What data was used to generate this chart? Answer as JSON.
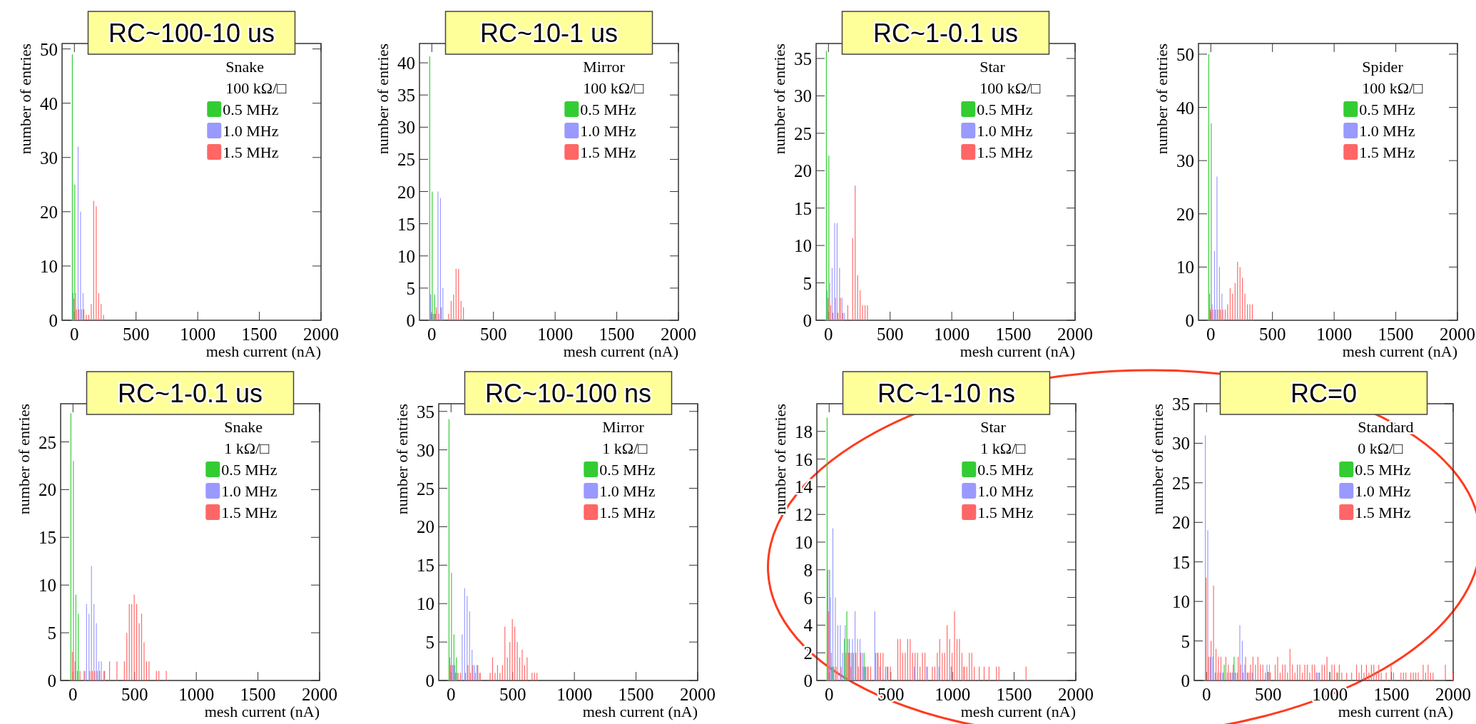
{
  "chart_data": [
    {
      "type": "histogram",
      "title": "RC~100-10 us",
      "xlabel": "mesh current (nA)",
      "ylabel": "number of entries",
      "legend_title": "Snake\n100 kΩ/□",
      "legend": "top right",
      "xlim": [
        -100,
        2000
      ],
      "xticks": [
        0,
        500,
        1000,
        1500,
        2000
      ],
      "ylim": [
        0,
        51
      ],
      "yticks": [
        0,
        10,
        20,
        30,
        40,
        50
      ],
      "bins": [
        -20,
        0,
        20,
        40,
        60,
        80,
        100,
        120,
        140,
        160,
        180,
        200,
        220,
        240,
        260,
        280,
        300,
        320,
        340
      ],
      "series": [
        {
          "name": "0.5 MHz",
          "color": "#33cc33",
          "values": [
            49,
            25,
            0,
            0,
            0,
            0,
            0,
            0,
            0,
            0,
            0,
            0,
            0,
            0,
            0,
            0,
            0,
            0
          ]
        },
        {
          "name": "1.0 MHz",
          "color": "#9999ff",
          "values": [
            5,
            5,
            32,
            20,
            5,
            0,
            0,
            0,
            0,
            0,
            0,
            0,
            0,
            0,
            0,
            0,
            0,
            0
          ]
        },
        {
          "name": "1.5 MHz",
          "color": "#ff6666",
          "values": [
            4,
            2,
            2,
            2,
            2,
            1,
            1,
            3,
            22,
            21,
            5,
            3,
            1,
            0,
            0,
            0,
            0,
            0
          ]
        }
      ]
    },
    {
      "type": "histogram",
      "title": "RC~10-1 us",
      "xlabel": "mesh current (nA)",
      "ylabel": "number of entries",
      "legend_title": "Mirror\n100 kΩ/□",
      "legend": "top right",
      "xlim": [
        -100,
        2000
      ],
      "xticks": [
        0,
        500,
        1000,
        1500,
        2000
      ],
      "ylim": [
        0,
        43
      ],
      "yticks": [
        0,
        5,
        10,
        15,
        20,
        25,
        30,
        35,
        40
      ],
      "bins": [
        -20,
        0,
        20,
        40,
        60,
        80,
        100,
        120,
        140,
        160,
        180,
        200,
        220,
        240,
        260,
        280,
        300,
        320,
        340
      ],
      "series": [
        {
          "name": "0.5 MHz",
          "color": "#33cc33",
          "values": [
            41,
            20,
            4,
            0,
            0,
            0,
            0,
            0,
            0,
            0,
            0,
            0,
            0,
            0,
            0,
            0,
            0,
            0
          ]
        },
        {
          "name": "1.0 MHz",
          "color": "#9999ff",
          "values": [
            4,
            1,
            1,
            20,
            19,
            5,
            0,
            0,
            0,
            0,
            0,
            0,
            0,
            0,
            0,
            0,
            0,
            0
          ]
        },
        {
          "name": "1.5 MHz",
          "color": "#ff6666",
          "values": [
            1,
            1,
            2,
            1,
            2,
            0,
            0,
            1,
            3,
            4,
            8,
            8,
            3,
            2,
            0,
            0,
            0,
            0
          ]
        }
      ]
    },
    {
      "type": "histogram",
      "title": "RC~1-0.1 us",
      "xlabel": "mesh current (nA)",
      "ylabel": "number of entries",
      "legend_title": "Star\n100 kΩ/□",
      "legend": "top right",
      "xlim": [
        -100,
        2000
      ],
      "xticks": [
        0,
        500,
        1000,
        1500,
        2000
      ],
      "ylim": [
        0,
        37
      ],
      "yticks": [
        0,
        5,
        10,
        15,
        20,
        25,
        30,
        35
      ],
      "bins": [
        -20,
        0,
        20,
        40,
        60,
        80,
        100,
        120,
        140,
        160,
        180,
        200,
        220,
        240,
        260,
        280,
        300,
        320,
        340
      ],
      "series": [
        {
          "name": "0.5 MHz",
          "color": "#33cc33",
          "values": [
            36,
            22,
            0,
            0,
            0,
            0,
            0,
            0,
            0,
            0,
            0,
            0,
            0,
            0,
            0,
            0,
            0,
            0
          ]
        },
        {
          "name": "1.0 MHz",
          "color": "#9999ff",
          "values": [
            4,
            5,
            7,
            13,
            13,
            7,
            3,
            1,
            0,
            0,
            0,
            0,
            0,
            0,
            0,
            0,
            0,
            0
          ]
        },
        {
          "name": "1.5 MHz",
          "color": "#ff6666",
          "values": [
            3,
            2,
            1,
            3,
            1,
            3,
            1,
            0,
            2,
            0,
            11,
            18,
            6,
            4,
            2,
            2,
            2,
            0
          ]
        }
      ]
    },
    {
      "type": "histogram",
      "xlabel": "mesh current (nA)",
      "ylabel": "number of entries",
      "legend_title": "Spider\n100 kΩ/□",
      "legend": "top right",
      "xlim": [
        -100,
        2000
      ],
      "xticks": [
        0,
        500,
        1000,
        1500,
        2000
      ],
      "ylim": [
        0,
        52
      ],
      "yticks": [
        0,
        10,
        20,
        30,
        40,
        50
      ],
      "bins": [
        -20,
        0,
        20,
        40,
        60,
        80,
        100,
        120,
        140,
        160,
        180,
        200,
        220,
        240,
        260,
        280,
        300,
        320,
        340
      ],
      "series": [
        {
          "name": "0.5 MHz",
          "color": "#33cc33",
          "values": [
            50,
            37,
            0,
            0,
            0,
            0,
            0,
            0,
            0,
            0,
            0,
            0,
            0,
            0,
            0,
            0,
            0,
            0
          ]
        },
        {
          "name": "1.0 MHz",
          "color": "#9999ff",
          "values": [
            5,
            3,
            13,
            27,
            10,
            5,
            0,
            0,
            0,
            0,
            0,
            0,
            0,
            0,
            0,
            0,
            0,
            0
          ]
        },
        {
          "name": "1.5 MHz",
          "color": "#ff6666",
          "values": [
            2,
            2,
            2,
            2,
            2,
            2,
            2,
            3,
            6,
            5,
            7,
            11,
            10,
            8,
            5,
            3,
            3,
            3
          ]
        }
      ]
    },
    {
      "type": "histogram",
      "title": "RC~1-0.1 us",
      "xlabel": "mesh current (nA)",
      "ylabel": "number of entries",
      "legend_title": "Snake\n1 kΩ/□",
      "legend": "top right",
      "xlim": [
        -100,
        2000
      ],
      "xticks": [
        0,
        500,
        1000,
        1500,
        2000
      ],
      "ylim": [
        0,
        29
      ],
      "yticks": [
        0,
        5,
        10,
        15,
        20,
        25
      ],
      "bins": [
        -20,
        0,
        20,
        40,
        60,
        80,
        100,
        120,
        140,
        160,
        180,
        200,
        220,
        240,
        260,
        280,
        300,
        320,
        340,
        360,
        380,
        400,
        420,
        440,
        460,
        480,
        500,
        520,
        540,
        560,
        580,
        600,
        620,
        640,
        660,
        680,
        700,
        720,
        740,
        760,
        780,
        800
      ],
      "series": [
        {
          "name": "0.5 MHz",
          "color": "#33cc33",
          "values": [
            28,
            23,
            9,
            7,
            0,
            0,
            0,
            0,
            0,
            0,
            0,
            0,
            0,
            0,
            0,
            0,
            0,
            0,
            0,
            0,
            0,
            0,
            0,
            0,
            0,
            0,
            0,
            0,
            0,
            0,
            0,
            0,
            0,
            0,
            0,
            0,
            0,
            0,
            0,
            0,
            0
          ]
        },
        {
          "name": "1.0 MHz",
          "color": "#9999ff",
          "values": [
            0,
            0,
            0,
            0,
            0,
            1,
            8,
            7,
            12,
            8,
            6,
            2,
            2,
            1,
            0,
            0,
            0,
            0,
            0,
            0,
            0,
            0,
            0,
            0,
            0,
            0,
            0,
            0,
            0,
            0,
            0,
            0,
            0,
            0,
            0,
            0,
            0,
            0,
            0,
            0,
            0
          ]
        },
        {
          "name": "1.5 MHz",
          "color": "#ff6666",
          "values": [
            3,
            2,
            1,
            1,
            0,
            1,
            0,
            1,
            1,
            1,
            1,
            1,
            0,
            1,
            0,
            2,
            0,
            0,
            2,
            0,
            0,
            2,
            5,
            8,
            8,
            9,
            8,
            6,
            7,
            4,
            2,
            2,
            0,
            0,
            1,
            1,
            0,
            0,
            1,
            0,
            0
          ]
        }
      ]
    },
    {
      "type": "histogram",
      "title": "RC~10-100 ns",
      "xlabel": "mesh current (nA)",
      "ylabel": "number of entries",
      "legend_title": "Mirror\n1 kΩ/□",
      "legend": "top right",
      "xlim": [
        -100,
        2000
      ],
      "xticks": [
        0,
        500,
        1000,
        1500,
        2000
      ],
      "ylim": [
        0,
        36
      ],
      "yticks": [
        0,
        5,
        10,
        15,
        20,
        25,
        30,
        35
      ],
      "bins": [
        -20,
        0,
        20,
        40,
        60,
        80,
        100,
        120,
        140,
        160,
        180,
        200,
        220,
        240,
        260,
        280,
        300,
        320,
        340,
        360,
        380,
        400,
        420,
        440,
        460,
        480,
        500,
        520,
        540,
        560,
        580,
        600,
        620,
        640,
        660,
        680,
        700,
        720,
        740,
        760,
        780,
        800
      ],
      "series": [
        {
          "name": "0.5 MHz",
          "color": "#33cc33",
          "values": [
            34,
            14,
            6,
            3,
            0,
            0,
            0,
            0,
            0,
            0,
            0,
            0,
            0,
            0,
            0,
            0,
            0,
            0,
            0,
            0,
            0,
            0,
            0,
            0,
            0,
            0,
            0,
            0,
            0,
            0,
            0,
            0,
            0,
            0,
            0,
            0,
            0,
            0,
            0,
            0,
            0
          ]
        },
        {
          "name": "1.0 MHz",
          "color": "#9999ff",
          "values": [
            3,
            2,
            2,
            1,
            0,
            6,
            12,
            11,
            9,
            4,
            2,
            2,
            1,
            0,
            0,
            0,
            0,
            0,
            0,
            0,
            0,
            0,
            0,
            0,
            0,
            0,
            0,
            0,
            0,
            0,
            0,
            0,
            0,
            0,
            0,
            0,
            0,
            0,
            0,
            0,
            0
          ]
        },
        {
          "name": "1.5 MHz",
          "color": "#ff6666",
          "values": [
            2,
            2,
            1,
            1,
            1,
            0,
            1,
            2,
            1,
            2,
            1,
            2,
            1,
            0,
            0,
            0,
            1,
            3,
            1,
            2,
            1,
            2,
            7,
            3,
            5,
            8,
            7,
            5,
            3,
            4,
            2,
            3,
            0,
            1,
            1,
            1,
            0,
            0,
            0,
            0,
            0
          ]
        }
      ]
    },
    {
      "type": "histogram",
      "title": "RC~1-10 ns",
      "xlabel": "mesh current (nA)",
      "ylabel": "number of entries",
      "legend_title": "Star\n1 kΩ/□",
      "legend": "top right",
      "xlim": [
        -100,
        2000
      ],
      "xticks": [
        0,
        500,
        1000,
        1500,
        2000
      ],
      "ylim": [
        0,
        20
      ],
      "yticks": [
        0,
        2,
        4,
        6,
        8,
        10,
        12,
        14,
        16,
        18
      ],
      "bins": [
        -20,
        0,
        20,
        40,
        60,
        80,
        100,
        120,
        140,
        160,
        180,
        200,
        220,
        240,
        260,
        280,
        300,
        320,
        340,
        360,
        380,
        400,
        420,
        440,
        460,
        480,
        500,
        520,
        540,
        560,
        580,
        600,
        620,
        640,
        660,
        680,
        700,
        720,
        740,
        760,
        780,
        800,
        820,
        840,
        860,
        880,
        900,
        920,
        940,
        960,
        980,
        1000,
        1020,
        1040,
        1060,
        1080,
        1100,
        1120,
        1140,
        1160,
        1180,
        1200,
        1220,
        1240,
        1260,
        1280,
        1300,
        1320,
        1340,
        1360,
        1380,
        1400,
        1420,
        1440,
        1460,
        1480,
        1500,
        1520,
        1540,
        1560,
        1580,
        1600,
        1620,
        1640,
        1660,
        1680,
        1700,
        1720,
        1740,
        1760,
        1780,
        1800,
        1820,
        1840,
        1860,
        1880,
        1900,
        1920,
        1940,
        1960,
        1980,
        2000
      ],
      "series": [
        {
          "name": "0.5 MHz",
          "color": "#33cc33",
          "values": [
            19,
            8,
            1,
            0,
            0,
            0,
            0,
            3,
            5,
            3,
            2,
            0,
            0,
            0,
            0,
            2,
            0,
            0,
            0,
            0,
            0,
            0,
            0,
            0,
            0,
            0,
            0,
            0,
            0,
            0,
            0,
            0,
            0,
            0,
            0,
            0,
            0,
            0,
            0,
            0,
            0,
            0,
            0,
            0,
            0,
            0,
            0,
            0,
            0,
            0,
            0,
            0,
            0,
            0,
            0,
            0,
            0,
            0,
            0,
            0,
            0,
            0,
            0,
            0,
            0,
            0,
            0,
            0,
            0,
            0,
            0,
            0,
            0,
            0,
            0,
            0,
            0,
            0,
            0,
            0,
            0,
            0,
            0,
            0,
            0,
            0,
            0,
            0,
            0,
            0,
            0,
            0,
            0,
            0,
            0,
            0,
            0,
            0,
            0,
            0,
            0
          ]
        },
        {
          "name": "1.0 MHz",
          "color": "#9999ff",
          "values": [
            8,
            6,
            11,
            6,
            4,
            4,
            2,
            4,
            3,
            2,
            3,
            5,
            3,
            3,
            2,
            1,
            1,
            0,
            0,
            5,
            2,
            1,
            0,
            0,
            1,
            0,
            0,
            0,
            0,
            0,
            0,
            0,
            0,
            0,
            0,
            1,
            0,
            0,
            0,
            0,
            1,
            0,
            0,
            0,
            0,
            1,
            0,
            0,
            0,
            0,
            1,
            0,
            0,
            0,
            0,
            1,
            0,
            0,
            0,
            0,
            0,
            0,
            0,
            0,
            0,
            0,
            0,
            0,
            0,
            0,
            0,
            0,
            0,
            0,
            0,
            0,
            0,
            0,
            0,
            0,
            0,
            0,
            0,
            0,
            0,
            0,
            0,
            0,
            0,
            0,
            0,
            0,
            0,
            0,
            0,
            0,
            0,
            0,
            0,
            0,
            0
          ]
        },
        {
          "name": "1.5 MHz",
          "color": "#ff6666",
          "values": [
            5,
            2,
            1,
            1,
            0,
            1,
            0,
            2,
            2,
            1,
            2,
            2,
            1,
            2,
            1,
            1,
            1,
            1,
            0,
            2,
            2,
            2,
            2,
            1,
            1,
            1,
            0,
            0,
            3,
            3,
            2,
            2,
            3,
            3,
            2,
            2,
            2,
            1,
            2,
            2,
            1,
            0,
            1,
            1,
            2,
            3,
            2,
            2,
            4,
            3,
            2,
            5,
            3,
            3,
            2,
            1,
            1,
            2,
            2,
            1,
            0,
            1,
            0,
            1,
            0,
            1,
            0,
            0,
            1,
            1,
            0,
            0,
            0,
            0,
            0,
            0,
            0,
            0,
            0,
            0,
            1,
            0,
            0,
            0,
            0,
            0,
            0,
            0,
            0,
            0,
            0,
            0,
            0,
            0,
            0,
            0,
            0,
            0,
            0,
            0,
            0
          ]
        }
      ]
    },
    {
      "type": "histogram",
      "title": "RC=0",
      "xlabel": "mesh current (nA)",
      "ylabel": "number of entries",
      "legend_title": "Standard\n0 kΩ/□",
      "legend": "top right",
      "xlim": [
        -100,
        2000
      ],
      "xticks": [
        0,
        500,
        1000,
        1500,
        2000
      ],
      "ylim": [
        0,
        35
      ],
      "yticks": [
        0,
        5,
        10,
        15,
        20,
        25,
        30,
        35
      ],
      "bins": [
        -20,
        0,
        20,
        40,
        60,
        80,
        100,
        120,
        140,
        160,
        180,
        200,
        220,
        240,
        260,
        280,
        300,
        320,
        340,
        360,
        380,
        400,
        420,
        440,
        460,
        480,
        500,
        520,
        540,
        560,
        580,
        600,
        620,
        640,
        660,
        680,
        700,
        720,
        740,
        760,
        780,
        800,
        820,
        840,
        860,
        880,
        900,
        920,
        940,
        960,
        980,
        1000,
        1020,
        1040,
        1060,
        1080,
        1100,
        1120,
        1140,
        1160,
        1180,
        1200,
        1220,
        1240,
        1260,
        1280,
        1300,
        1320,
        1340,
        1360,
        1380,
        1400,
        1420,
        1440,
        1460,
        1480,
        1500,
        1520,
        1540,
        1560,
        1580,
        1600,
        1620,
        1640,
        1660,
        1680,
        1700,
        1720,
        1740,
        1760,
        1780,
        1800,
        1820,
        1840,
        1860,
        1880,
        1900,
        1920,
        1940,
        1960,
        1980,
        2000
      ],
      "series": [
        {
          "name": "0.5 MHz",
          "color": "#33cc33",
          "values": [
            0,
            0,
            0,
            0,
            0,
            0,
            0,
            0,
            2,
            0,
            0,
            0,
            3,
            0,
            0,
            0,
            0,
            0,
            0,
            0,
            0,
            0,
            0,
            0,
            0,
            0,
            0,
            0,
            0,
            0,
            0,
            0,
            0,
            0,
            0,
            0,
            0,
            0,
            0,
            0,
            0,
            0,
            0,
            0,
            0,
            0,
            0,
            0,
            0,
            0,
            0,
            0,
            0,
            0,
            1,
            0,
            0,
            0,
            0,
            0,
            0,
            0,
            0,
            0,
            0,
            0,
            0,
            0,
            0,
            0,
            0,
            0,
            0,
            0,
            0,
            0,
            0,
            0,
            0,
            0,
            0,
            0,
            0,
            0,
            0,
            0,
            0,
            0,
            0,
            0,
            0,
            0,
            0,
            0,
            0,
            0,
            0,
            0,
            0,
            0,
            0
          ]
        },
        {
          "name": "1.0 MHz",
          "color": "#9999ff",
          "values": [
            31,
            19,
            3,
            3,
            1,
            1,
            1,
            1,
            0,
            1,
            1,
            1,
            1,
            1,
            7,
            5,
            2,
            1,
            1,
            1,
            0,
            0,
            0,
            0,
            0,
            2,
            2,
            0,
            0,
            0,
            0,
            0,
            0,
            0,
            0,
            0,
            0,
            0,
            0,
            0,
            0,
            0,
            0,
            0,
            0,
            1,
            1,
            0,
            0,
            0,
            0,
            0,
            0,
            0,
            0,
            0,
            0,
            0,
            0,
            0,
            0,
            0,
            0,
            0,
            0,
            0,
            0,
            0,
            0,
            0,
            0,
            0,
            0,
            0,
            0,
            0,
            0,
            0,
            0,
            0,
            0,
            0,
            0,
            0,
            0,
            0,
            0,
            0,
            0,
            0,
            0,
            0,
            0,
            0,
            0,
            0,
            0,
            0,
            0,
            0,
            0
          ]
        },
        {
          "name": "1.5 MHz",
          "color": "#ff6666",
          "values": [
            13,
            3,
            5,
            12,
            4,
            3,
            3,
            1,
            3,
            2,
            1,
            2,
            1,
            3,
            2,
            1,
            3,
            1,
            2,
            3,
            2,
            3,
            2,
            2,
            1,
            1,
            1,
            0,
            2,
            3,
            1,
            2,
            2,
            1,
            4,
            2,
            1,
            2,
            2,
            1,
            2,
            2,
            1,
            2,
            2,
            1,
            1,
            2,
            2,
            3,
            1,
            2,
            2,
            1,
            2,
            1,
            0,
            1,
            0,
            1,
            0,
            2,
            1,
            2,
            1,
            2,
            1,
            2,
            2,
            1,
            2,
            1,
            0,
            1,
            0,
            2,
            1,
            0,
            0,
            1,
            1,
            1,
            0,
            1,
            1,
            1,
            1,
            0,
            2,
            1,
            2,
            1,
            1,
            0,
            0,
            0,
            0,
            2,
            0,
            0,
            1
          ]
        }
      ]
    }
  ]
}
